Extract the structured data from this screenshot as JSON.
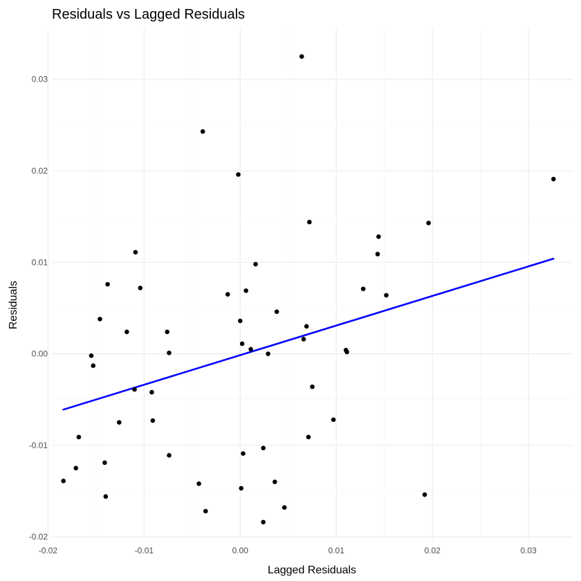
{
  "chart_data": {
    "type": "scatter",
    "title": "Residuals vs Lagged Residuals",
    "xlabel": "Lagged Residuals",
    "ylabel": "Residuals",
    "xlim": [
      -0.0196,
      0.0346
    ],
    "ylim": [
      -0.0203,
      0.0355
    ],
    "x_ticks": [
      -0.02,
      -0.01,
      0.0,
      0.01,
      0.02,
      0.03
    ],
    "x_tick_labels": [
      "-0.02",
      "-0.01",
      "0.00",
      "0.01",
      "0.02",
      "0.03"
    ],
    "y_ticks": [
      -0.02,
      -0.01,
      0.0,
      0.01,
      0.02,
      0.03
    ],
    "y_tick_labels": [
      "-0.02",
      "-0.01",
      "0.00",
      "0.01",
      "0.02",
      "0.03"
    ],
    "grid": true,
    "point_color": "#000000",
    "trend_line": {
      "type": "linear",
      "color": "#0000ff",
      "x": [
        -0.0184,
        0.0326
      ],
      "y": [
        -0.0061,
        0.0104
      ]
    },
    "points": [
      {
        "x": 0.0064,
        "y": 0.0325
      },
      {
        "x": -0.0039,
        "y": 0.0243
      },
      {
        "x": -0.0002,
        "y": 0.0196
      },
      {
        "x": 0.0326,
        "y": 0.0191
      },
      {
        "x": 0.0072,
        "y": 0.0144
      },
      {
        "x": 0.0196,
        "y": 0.0143
      },
      {
        "x": 0.0144,
        "y": 0.0128
      },
      {
        "x": -0.0109,
        "y": 0.0111
      },
      {
        "x": 0.0143,
        "y": 0.0109
      },
      {
        "x": 0.0016,
        "y": 0.0098
      },
      {
        "x": -0.0138,
        "y": 0.0076
      },
      {
        "x": -0.0104,
        "y": 0.0072
      },
      {
        "x": 0.0128,
        "y": 0.0071
      },
      {
        "x": 0.0006,
        "y": 0.0069
      },
      {
        "x": -0.0013,
        "y": 0.0065
      },
      {
        "x": 0.0152,
        "y": 0.0064
      },
      {
        "x": 0.0038,
        "y": 0.0046
      },
      {
        "x": -0.0146,
        "y": 0.0038
      },
      {
        "x": 0.0,
        "y": 0.0036
      },
      {
        "x": 0.0069,
        "y": 0.003
      },
      {
        "x": -0.0118,
        "y": 0.0024
      },
      {
        "x": -0.0076,
        "y": 0.0024
      },
      {
        "x": 0.0066,
        "y": 0.0016
      },
      {
        "x": 0.0002,
        "y": 0.0011
      },
      {
        "x": 0.0011,
        "y": 0.0005
      },
      {
        "x": 0.011,
        "y": 0.0004
      },
      {
        "x": 0.0111,
        "y": 0.0002
      },
      {
        "x": -0.0074,
        "y": 0.0001
      },
      {
        "x": 0.0029,
        "y": 0.0
      },
      {
        "x": -0.0155,
        "y": -0.0002
      },
      {
        "x": -0.0153,
        "y": -0.0013
      },
      {
        "x": 0.0075,
        "y": -0.0036
      },
      {
        "x": -0.011,
        "y": -0.0039
      },
      {
        "x": -0.0092,
        "y": -0.0042
      },
      {
        "x": 0.0097,
        "y": -0.0072
      },
      {
        "x": -0.0091,
        "y": -0.0073
      },
      {
        "x": -0.0126,
        "y": -0.0075
      },
      {
        "x": -0.0168,
        "y": -0.0091
      },
      {
        "x": 0.0071,
        "y": -0.0091
      },
      {
        "x": 0.0024,
        "y": -0.0103
      },
      {
        "x": 0.0003,
        "y": -0.0109
      },
      {
        "x": -0.0074,
        "y": -0.0111
      },
      {
        "x": -0.0141,
        "y": -0.0119
      },
      {
        "x": -0.0171,
        "y": -0.0125
      },
      {
        "x": -0.0184,
        "y": -0.0139
      },
      {
        "x": 0.0036,
        "y": -0.014
      },
      {
        "x": -0.0043,
        "y": -0.0142
      },
      {
        "x": 0.0001,
        "y": -0.0147
      },
      {
        "x": 0.0192,
        "y": -0.0154
      },
      {
        "x": -0.014,
        "y": -0.0156
      },
      {
        "x": 0.0046,
        "y": -0.0168
      },
      {
        "x": -0.0036,
        "y": -0.0172
      },
      {
        "x": 0.0024,
        "y": -0.0184
      }
    ]
  }
}
